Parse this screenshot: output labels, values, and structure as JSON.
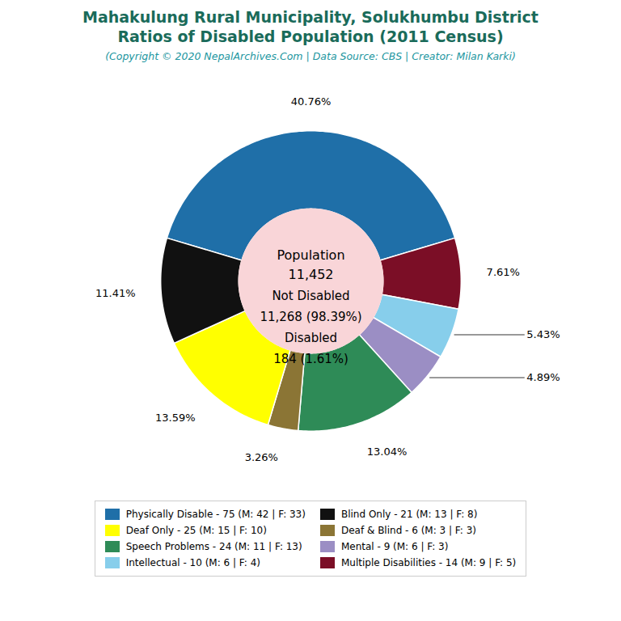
{
  "chart_data": {
    "type": "donut",
    "title": [
      "Mahakulung Rural Municipality, Solukhumbu District",
      "Ratios of Disabled Population (2011 Census)"
    ],
    "subtitle": "(Copyright © 2020 NepalArchives.Com | Data Source: CBS | Creator: Milan Karki)",
    "categories": [
      "Physically Disable - 75 (M: 42 | F: 33)",
      "Multiple Disabilities - 14 (M: 9 | F: 5)",
      "Intellectual - 10 (M: 6 | F: 4)",
      "Mental - 9 (M: 6 | F: 3)",
      "Speech Problems - 24 (M: 11 | F: 13)",
      "Deaf & Blind - 6 (M: 3 | F: 3)",
      "Deaf Only - 25 (M: 15 | F: 10)",
      "Blind Only - 21 (M: 13 | F: 8)"
    ],
    "values": [
      40.76,
      7.61,
      5.43,
      4.89,
      13.04,
      3.26,
      13.59,
      11.41
    ],
    "value_labels": [
      "40.76%",
      "7.61%",
      "5.43%",
      "4.89%",
      "13.04%",
      "3.26%",
      "13.59%",
      "11.41%"
    ],
    "colors": [
      "#1f6fa8",
      "#7b0e26",
      "#87ceeb",
      "#9b8ec4",
      "#2e8b57",
      "#8b7535",
      "#ffff00",
      "#111111"
    ],
    "data_labels": true,
    "legend": "bottom",
    "annotations": [
      "Population",
      "11,452",
      "Not Disabled",
      "11,268 (98.39%)",
      "Disabled",
      "184 (1.61%)"
    ]
  }
}
